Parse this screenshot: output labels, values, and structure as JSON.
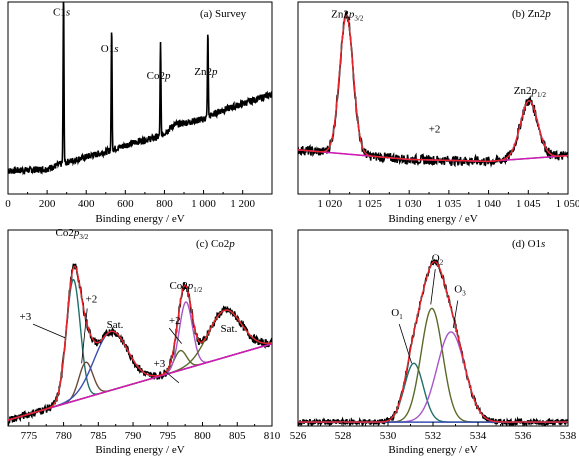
{
  "colors": {
    "background": "#ffffff",
    "axis": "#000000",
    "raw": "#000000",
    "envelope": "#e8242b",
    "background_line": "#d21bb3",
    "component_teal": "#1f6f6a",
    "component_olive": "#5a6a2a",
    "component_purple": "#a855c9",
    "component_brown": "#6a4a3a",
    "component_blue": "#3a4fb0"
  },
  "chart_data": [
    {
      "type": "line",
      "panel_label": "(a) Survey",
      "xlabel": "Binding energy / eV",
      "xlim": [
        0,
        1350
      ],
      "ylim": [
        0,
        1
      ],
      "x_ticks": [
        0,
        200,
        400,
        600,
        800,
        1000,
        1200
      ],
      "x_tick_labels": [
        "0",
        "200",
        "400",
        "600",
        "800",
        "1 000",
        "1 200"
      ],
      "annotations": [
        {
          "text_main": "C1",
          "text_italic": "s",
          "x": 284,
          "y": 0.93
        },
        {
          "text_main": "O1",
          "text_italic": "s",
          "x": 530,
          "y": 0.74
        },
        {
          "text_main": "Co2",
          "text_italic": "p",
          "x": 780,
          "y": 0.6
        },
        {
          "text_main": "Zn2",
          "text_italic": "p",
          "x": 1022,
          "y": 0.62
        }
      ],
      "peaks": [
        {
          "x": 284,
          "height": 0.88
        },
        {
          "x": 530,
          "height": 0.64
        },
        {
          "x": 780,
          "height": 0.48
        },
        {
          "x": 1022,
          "height": 0.44
        }
      ],
      "baseline": [
        [
          0,
          0.12
        ],
        [
          200,
          0.13
        ],
        [
          280,
          0.16
        ],
        [
          500,
          0.22
        ],
        [
          650,
          0.27
        ],
        [
          780,
          0.3
        ],
        [
          850,
          0.36
        ],
        [
          1000,
          0.39
        ],
        [
          1080,
          0.43
        ],
        [
          1200,
          0.47
        ],
        [
          1350,
          0.52
        ]
      ]
    },
    {
      "type": "line",
      "panel_label_main": "(b) Zn2",
      "panel_label_italic": "p",
      "xlabel": "Binding energy / eV",
      "xlim": [
        1016,
        1050
      ],
      "ylim": [
        0,
        1
      ],
      "x_ticks": [
        1020,
        1025,
        1030,
        1035,
        1040,
        1045,
        1050
      ],
      "x_tick_labels": [
        "1 020",
        "1 025",
        "1 030",
        "1 035",
        "1 040",
        "1 045",
        "1 050"
      ],
      "annotations": [
        {
          "text": "Zn2p3/2",
          "x": 1022.2,
          "y": 0.92
        },
        {
          "text": "Zn2p1/2",
          "x": 1045.2,
          "y": 0.52
        },
        {
          "text": "+2",
          "x": 1033.2,
          "y": 0.32
        }
      ],
      "components": [
        {
          "center": 1022.1,
          "height": 0.72,
          "width": 0.85,
          "color_key": "component_teal"
        },
        {
          "center": 1045.1,
          "height": 0.3,
          "width": 1.1,
          "color_key": "component_purple"
        }
      ],
      "background": [
        [
          1016,
          0.23
        ],
        [
          1030,
          0.18
        ],
        [
          1040,
          0.17
        ],
        [
          1050,
          0.2
        ]
      ]
    },
    {
      "type": "line",
      "panel_label_main": "(c) Co2",
      "panel_label_italic": "p",
      "xlabel": "Binding energy / eV",
      "xlim": [
        772,
        810
      ],
      "ylim": [
        0,
        1
      ],
      "x_ticks": [
        775,
        780,
        785,
        790,
        795,
        800,
        805,
        810
      ],
      "x_tick_labels": [
        "775",
        "780",
        "785",
        "790",
        "795",
        "800",
        "805",
        "810"
      ],
      "annotations": [
        {
          "text": "Co2p3/2",
          "x": 781.2,
          "y": 0.97
        },
        {
          "text": "Co2p1/2",
          "x": 797.6,
          "y": 0.7
        },
        {
          "text": "+3",
          "x": 774.5,
          "y": 0.54
        },
        {
          "text": "+2",
          "x": 784.0,
          "y": 0.63
        },
        {
          "text": "Sat.",
          "x": 787.4,
          "y": 0.5
        },
        {
          "text": "+2",
          "x": 796.0,
          "y": 0.52
        },
        {
          "text": "+3",
          "x": 793.8,
          "y": 0.3
        },
        {
          "text": "Sat.",
          "x": 803.8,
          "y": 0.48
        }
      ],
      "components": [
        {
          "center": 781.4,
          "height": 0.62,
          "width": 1.0,
          "color_key": "component_teal"
        },
        {
          "center": 783.2,
          "height": 0.18,
          "width": 1.0,
          "color_key": "component_brown"
        },
        {
          "center": 786.8,
          "height": 0.3,
          "width": 2.4,
          "color_key": "component_blue"
        },
        {
          "center": 796.8,
          "height": 0.1,
          "width": 0.9,
          "color_key": "component_olive"
        },
        {
          "center": 797.6,
          "height": 0.34,
          "width": 0.95,
          "color_key": "component_purple"
        },
        {
          "center": 803.2,
          "height": 0.24,
          "width": 2.4,
          "color_key": "component_olive"
        }
      ],
      "background": [
        [
          772,
          0.03
        ],
        [
          810,
          0.42
        ]
      ]
    },
    {
      "type": "line",
      "panel_label_main": "(d) O1",
      "panel_label_italic": "s",
      "xlabel": "Binding energy / eV",
      "xlim": [
        526,
        538
      ],
      "ylim": [
        0,
        1
      ],
      "x_ticks": [
        526,
        528,
        530,
        532,
        534,
        536,
        538
      ],
      "x_tick_labels": [
        "526",
        "528",
        "530",
        "532",
        "534",
        "536",
        "538"
      ],
      "annotations": [
        {
          "text_main": "O",
          "text_sub": "1",
          "x": 530.4,
          "y": 0.56
        },
        {
          "text_main": "O",
          "text_sub": "2",
          "x": 532.2,
          "y": 0.84
        },
        {
          "text_main": "O",
          "text_sub": "3",
          "x": 533.2,
          "y": 0.68
        }
      ],
      "components": [
        {
          "center": 531.15,
          "height": 0.3,
          "width": 0.42,
          "color_key": "component_teal"
        },
        {
          "center": 531.95,
          "height": 0.58,
          "width": 0.48,
          "color_key": "component_olive"
        },
        {
          "center": 532.8,
          "height": 0.46,
          "width": 0.62,
          "color_key": "component_purple"
        }
      ],
      "background": [
        [
          526,
          0.02
        ],
        [
          538,
          0.02
        ]
      ]
    }
  ]
}
